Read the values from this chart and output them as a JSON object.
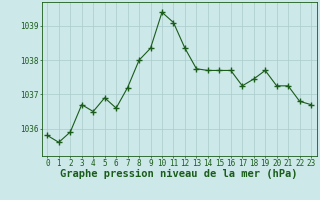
{
  "x": [
    0,
    1,
    2,
    3,
    4,
    5,
    6,
    7,
    8,
    9,
    10,
    11,
    12,
    13,
    14,
    15,
    16,
    17,
    18,
    19,
    20,
    21,
    22,
    23
  ],
  "y": [
    1035.8,
    1035.6,
    1035.9,
    1036.7,
    1036.5,
    1036.9,
    1036.6,
    1037.2,
    1038.0,
    1038.35,
    1039.4,
    1039.1,
    1038.35,
    1037.75,
    1037.7,
    1037.7,
    1037.7,
    1037.25,
    1037.45,
    1037.7,
    1037.25,
    1037.25,
    1036.8,
    1036.7
  ],
  "line_color": "#1a5c1a",
  "marker": "+",
  "marker_size": 4,
  "bg_color": "#cce8e8",
  "grid_color": "#aacccc",
  "xlabel": "Graphe pression niveau de la mer (hPa)",
  "xlabel_fontsize": 7.5,
  "xlabel_color": "#1a5c1a",
  "tick_color": "#1a5c1a",
  "tick_fontsize": 5.5,
  "yticks": [
    1036,
    1037,
    1038,
    1039
  ],
  "ylim": [
    1035.2,
    1039.7
  ],
  "xlim": [
    -0.5,
    23.5
  ]
}
